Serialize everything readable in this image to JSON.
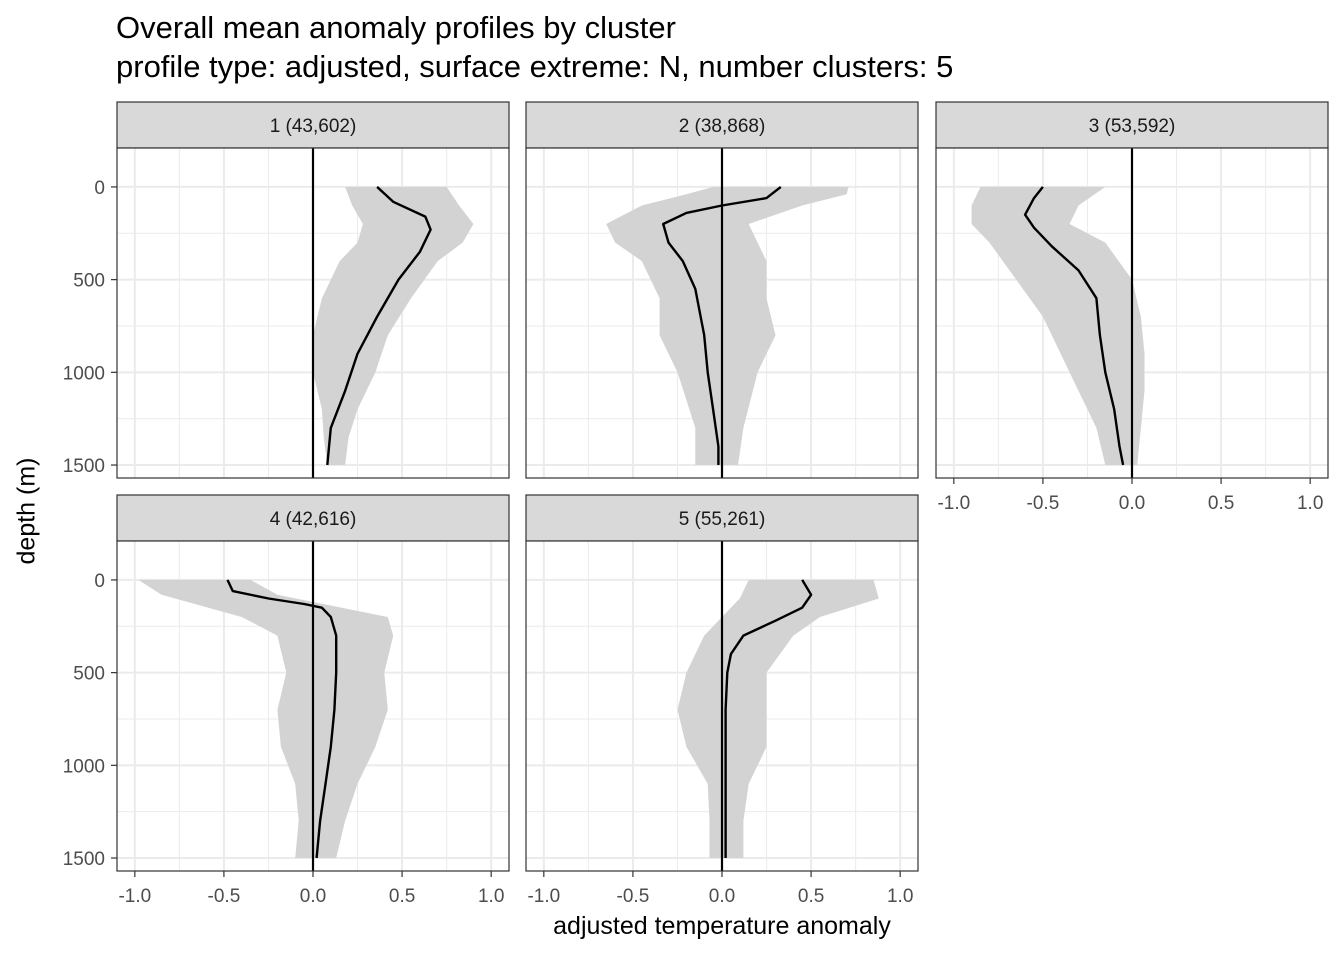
{
  "chart_data": {
    "type": "line",
    "title": "Overall mean anomaly profiles by cluster",
    "subtitle": "profile type: adjusted, surface extreme: N, number clusters: 5",
    "xlabel": "adjusted temperature anomaly",
    "ylabel": "depth (m)",
    "xlim": [
      -1.1,
      1.1
    ],
    "ylim": [
      1570,
      -210
    ],
    "x_ticks": [
      -1.0,
      -0.5,
      0.0,
      0.5,
      1.0
    ],
    "x_tick_labels": [
      "-1.0",
      "-0.5",
      "0.0",
      "0.5",
      "1.0"
    ],
    "y_ticks": [
      0,
      500,
      1000,
      1500
    ],
    "y_tick_labels": [
      "0",
      "500",
      "1000",
      "1500"
    ],
    "y_reversed": true,
    "grid": true,
    "reference_line_x": 0,
    "colors": {
      "line": "#000000",
      "ribbon": "#d3d3d3",
      "strip": "#d9d9d9",
      "grid": "#ebebeb",
      "border": "#333333"
    },
    "panels": [
      {
        "label": "1 (43,602)",
        "mean": [
          [
            0.36,
            0
          ],
          [
            0.45,
            80
          ],
          [
            0.63,
            160
          ],
          [
            0.66,
            230
          ],
          [
            0.6,
            350
          ],
          [
            0.48,
            500
          ],
          [
            0.36,
            700
          ],
          [
            0.25,
            900
          ],
          [
            0.18,
            1100
          ],
          [
            0.1,
            1300
          ],
          [
            0.08,
            1500
          ]
        ],
        "ribbon": [
          [
            0.18,
            0,
            0.75
          ],
          [
            0.22,
            100,
            0.82
          ],
          [
            0.28,
            200,
            0.9
          ],
          [
            0.25,
            300,
            0.84
          ],
          [
            0.15,
            400,
            0.7
          ],
          [
            0.05,
            600,
            0.55
          ],
          [
            0.0,
            800,
            0.42
          ],
          [
            0.0,
            1000,
            0.35
          ],
          [
            0.05,
            1200,
            0.25
          ],
          [
            0.06,
            1350,
            0.2
          ],
          [
            0.08,
            1500,
            0.18
          ]
        ]
      },
      {
        "label": "2 (38,868)",
        "mean": [
          [
            0.33,
            0
          ],
          [
            0.25,
            60
          ],
          [
            0.0,
            100
          ],
          [
            -0.2,
            140
          ],
          [
            -0.33,
            200
          ],
          [
            -0.3,
            300
          ],
          [
            -0.22,
            400
          ],
          [
            -0.15,
            550
          ],
          [
            -0.1,
            800
          ],
          [
            -0.08,
            1000
          ],
          [
            -0.05,
            1200
          ],
          [
            -0.02,
            1400
          ],
          [
            -0.02,
            1500
          ]
        ],
        "ribbon": [
          [
            -0.05,
            0,
            0.71
          ],
          [
            -0.2,
            40,
            0.7
          ],
          [
            -0.45,
            100,
            0.45
          ],
          [
            -0.65,
            200,
            0.15
          ],
          [
            -0.6,
            300,
            0.2
          ],
          [
            -0.45,
            400,
            0.25
          ],
          [
            -0.35,
            600,
            0.25
          ],
          [
            -0.35,
            800,
            0.3
          ],
          [
            -0.25,
            1000,
            0.2
          ],
          [
            -0.15,
            1300,
            0.12
          ],
          [
            -0.15,
            1500,
            0.09
          ]
        ]
      },
      {
        "label": "3 (53,592)",
        "mean": [
          [
            -0.5,
            0
          ],
          [
            -0.55,
            60
          ],
          [
            -0.6,
            150
          ],
          [
            -0.55,
            220
          ],
          [
            -0.45,
            320
          ],
          [
            -0.3,
            450
          ],
          [
            -0.2,
            600
          ],
          [
            -0.18,
            800
          ],
          [
            -0.15,
            1000
          ],
          [
            -0.1,
            1200
          ],
          [
            -0.07,
            1400
          ],
          [
            -0.05,
            1500
          ]
        ],
        "ribbon": [
          [
            -0.85,
            0,
            -0.15
          ],
          [
            -0.9,
            100,
            -0.3
          ],
          [
            -0.9,
            200,
            -0.35
          ],
          [
            -0.8,
            300,
            -0.15
          ],
          [
            -0.65,
            500,
            0.0
          ],
          [
            -0.5,
            700,
            0.05
          ],
          [
            -0.4,
            900,
            0.07
          ],
          [
            -0.3,
            1100,
            0.07
          ],
          [
            -0.2,
            1300,
            0.05
          ],
          [
            -0.15,
            1500,
            0.03
          ]
        ]
      },
      {
        "label": "4 (42,616)",
        "mean": [
          [
            -0.48,
            0
          ],
          [
            -0.45,
            60
          ],
          [
            -0.25,
            100
          ],
          [
            -0.05,
            130
          ],
          [
            0.05,
            150
          ],
          [
            0.1,
            200
          ],
          [
            0.13,
            300
          ],
          [
            0.13,
            500
          ],
          [
            0.12,
            700
          ],
          [
            0.1,
            900
          ],
          [
            0.07,
            1100
          ],
          [
            0.04,
            1300
          ],
          [
            0.02,
            1500
          ]
        ],
        "ribbon": [
          [
            -0.98,
            0,
            -0.35
          ],
          [
            -0.85,
            80,
            -0.2
          ],
          [
            -0.4,
            200,
            0.42
          ],
          [
            -0.2,
            300,
            0.45
          ],
          [
            -0.15,
            500,
            0.4
          ],
          [
            -0.2,
            700,
            0.42
          ],
          [
            -0.18,
            900,
            0.35
          ],
          [
            -0.1,
            1100,
            0.25
          ],
          [
            -0.08,
            1300,
            0.18
          ],
          [
            -0.1,
            1500,
            0.13
          ]
        ]
      },
      {
        "label": "5 (55,261)",
        "mean": [
          [
            0.45,
            0
          ],
          [
            0.5,
            80
          ],
          [
            0.45,
            150
          ],
          [
            0.3,
            220
          ],
          [
            0.12,
            300
          ],
          [
            0.05,
            400
          ],
          [
            0.03,
            500
          ],
          [
            0.02,
            700
          ],
          [
            0.02,
            900
          ],
          [
            0.02,
            1100
          ],
          [
            0.02,
            1300
          ],
          [
            0.02,
            1500
          ]
        ],
        "ribbon": [
          [
            0.15,
            0,
            0.85
          ],
          [
            0.1,
            100,
            0.88
          ],
          [
            0.0,
            200,
            0.55
          ],
          [
            -0.1,
            300,
            0.4
          ],
          [
            -0.2,
            500,
            0.25
          ],
          [
            -0.25,
            700,
            0.25
          ],
          [
            -0.2,
            900,
            0.25
          ],
          [
            -0.08,
            1100,
            0.15
          ],
          [
            -0.07,
            1300,
            0.12
          ],
          [
            -0.07,
            1500,
            0.12
          ]
        ]
      }
    ]
  }
}
